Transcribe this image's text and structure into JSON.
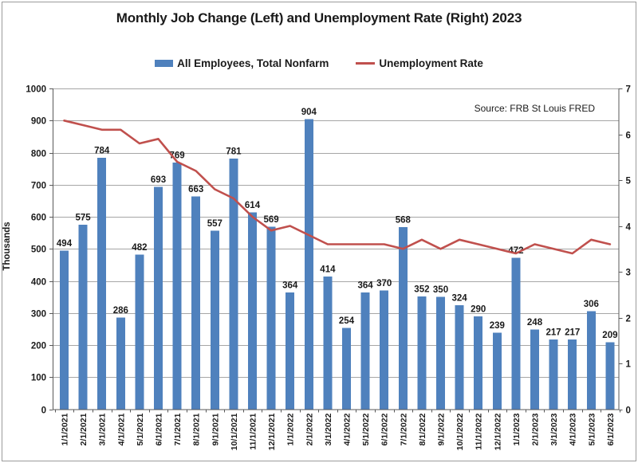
{
  "chart": {
    "title": "Monthly Job Change (Left) and Unemployment Rate (Right) 2023",
    "source": "Source: FRB St Louis FRED",
    "left_axis_title": "Thousands",
    "legend": [
      "All Employees, Total Nonfarm",
      "Unemployment Rate"
    ],
    "colors": {
      "bar": "#4F81BD",
      "line": "#C0504D",
      "gridline": "#a6a6a6",
      "axis": "#595959"
    }
  },
  "chart_data": {
    "type": "bar",
    "subtype": "combo-bar-line-dual-axis",
    "title": "Monthly Job Change (Left) and Unemployment Rate (Right) 2023",
    "annotations": [
      "Source: FRB St Louis FRED"
    ],
    "grid": true,
    "legend_position": "top",
    "categories": [
      "1/1/2021",
      "2/1/2021",
      "3/1/2021",
      "4/1/2021",
      "5/1/2021",
      "6/1/2021",
      "7/1/2021",
      "8/1/2021",
      "9/1/2021",
      "10/1/2021",
      "11/1/2021",
      "12/1/2021",
      "1/1/2022",
      "2/1/2022",
      "3/1/2022",
      "4/1/2022",
      "5/1/2022",
      "6/1/2022",
      "7/1/2022",
      "8/1/2022",
      "9/1/2022",
      "10/1/2022",
      "11/1/2022",
      "12/1/2022",
      "1/1/2023",
      "2/1/2023",
      "3/1/2023",
      "4/1/2023",
      "5/1/2023",
      "6/1/2023"
    ],
    "series": [
      {
        "name": "All Employees, Total Nonfarm",
        "type": "bar",
        "axis": "left",
        "color": "#4F81BD",
        "data_labels": true,
        "values": [
          494,
          575,
          784,
          286,
          482,
          693,
          769,
          663,
          557,
          781,
          614,
          569,
          364,
          904,
          414,
          254,
          364,
          370,
          568,
          352,
          350,
          324,
          290,
          239,
          472,
          248,
          217,
          217,
          306,
          209
        ]
      },
      {
        "name": "Unemployment Rate",
        "type": "line",
        "axis": "right",
        "color": "#C0504D",
        "data_labels": false,
        "values": [
          6.3,
          6.2,
          6.1,
          6.1,
          5.8,
          5.9,
          5.4,
          5.2,
          4.8,
          4.6,
          4.2,
          3.9,
          4.0,
          3.8,
          3.6,
          3.6,
          3.6,
          3.6,
          3.5,
          3.7,
          3.5,
          3.7,
          3.6,
          3.5,
          3.4,
          3.6,
          3.5,
          3.4,
          3.7,
          3.6
        ]
      }
    ],
    "left_axis": {
      "label": "Thousands",
      "min": 0,
      "max": 1000,
      "step": 100,
      "ticks": [
        0,
        100,
        200,
        300,
        400,
        500,
        600,
        700,
        800,
        900,
        1000
      ]
    },
    "right_axis": {
      "label": "",
      "min": 0,
      "max": 7,
      "step": 1,
      "ticks": [
        0,
        1,
        2,
        3,
        4,
        5,
        6,
        7
      ]
    }
  }
}
